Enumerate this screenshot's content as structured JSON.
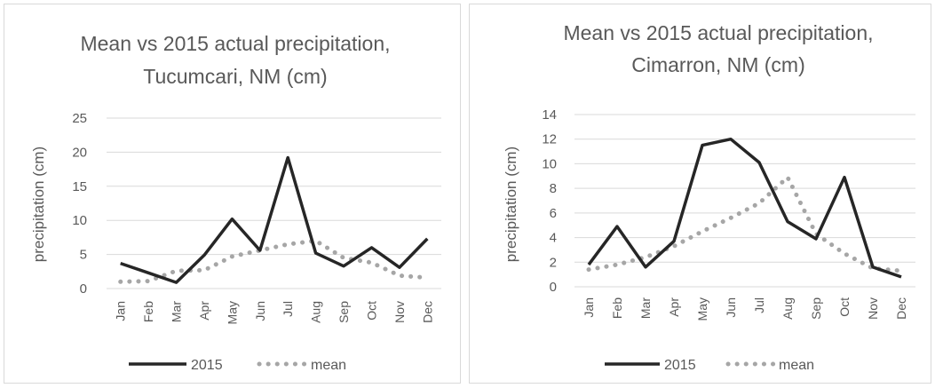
{
  "chart_data": [
    {
      "type": "line",
      "title": "Mean vs 2015 actual precipitation, Tucumcari, NM (cm)",
      "title_lines": [
        "Mean vs 2015 actual precipitation,",
        "Tucumcari, NM (cm)"
      ],
      "ylabel": "precipitation (cm)",
      "xlabel": "",
      "ylim": [
        0,
        25
      ],
      "yticks": [
        0,
        5,
        10,
        15,
        20,
        25
      ],
      "grid": true,
      "legend_position": "bottom",
      "categories": [
        "Jan",
        "Feb",
        "Mar",
        "Apr",
        "May",
        "Jun",
        "Jul",
        "Aug",
        "Sep",
        "Oct",
        "Nov",
        "Dec"
      ],
      "series": [
        {
          "name": "2015",
          "style": "solid",
          "color": "#262626",
          "values": [
            3.7,
            2.3,
            0.9,
            4.9,
            10.2,
            5.6,
            19.2,
            5.2,
            3.3,
            6.0,
            3.1,
            7.3
          ]
        },
        {
          "name": "mean",
          "style": "dotted",
          "color": "#a6a6a6",
          "values": [
            1.0,
            1.1,
            2.6,
            2.7,
            4.7,
            5.6,
            6.5,
            7.0,
            4.5,
            3.8,
            1.9,
            1.6
          ]
        }
      ]
    },
    {
      "type": "line",
      "title": "Mean vs 2015 actual precipitation, Cimarron, NM (cm)",
      "title_lines": [
        "Mean vs 2015 actual precipitation,",
        "Cimarron, NM (cm)"
      ],
      "ylabel": "precipitation (cm)",
      "xlabel": "",
      "ylim": [
        0,
        14
      ],
      "yticks": [
        0,
        2,
        4,
        6,
        8,
        10,
        12,
        14
      ],
      "grid": true,
      "legend_position": "bottom",
      "categories": [
        "Jan",
        "Feb",
        "Mar",
        "Apr",
        "May",
        "Jun",
        "Jul",
        "Aug",
        "Sep",
        "Oct",
        "Nov",
        "Dec"
      ],
      "series": [
        {
          "name": "2015",
          "style": "solid",
          "color": "#262626",
          "values": [
            1.8,
            4.9,
            1.6,
            3.7,
            11.5,
            12.0,
            10.1,
            5.3,
            3.9,
            8.9,
            1.6,
            0.8
          ]
        },
        {
          "name": "mean",
          "style": "dotted",
          "color": "#a6a6a6",
          "values": [
            1.4,
            1.8,
            2.4,
            3.3,
            4.5,
            5.6,
            6.8,
            8.9,
            4.3,
            2.7,
            1.5,
            1.3
          ]
        }
      ]
    }
  ]
}
